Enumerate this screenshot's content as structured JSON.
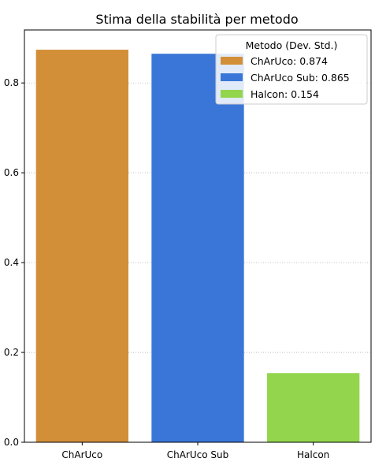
{
  "chart_data": {
    "type": "bar",
    "title": "Stima della stabilità per metodo",
    "xlabel": "",
    "ylabel": "",
    "categories": [
      "ChArUco",
      "ChArUco Sub",
      "Halcon"
    ],
    "values": [
      0.874,
      0.865,
      0.154
    ],
    "colors": [
      "#d28f38",
      "#3a76d8",
      "#93d64e"
    ],
    "ylim": [
      0,
      0.918
    ],
    "yticks": [
      0.0,
      0.2,
      0.4,
      0.6,
      0.8
    ],
    "ytick_labels": [
      "0.0",
      "0.2",
      "0.4",
      "0.6",
      "0.8"
    ],
    "grid": "y-dotted",
    "legend": {
      "title": "Metodo (Dev. Std.)",
      "placement": "top-right",
      "entries": [
        "ChArUco: 0.874",
        "ChArUco Sub: 0.865",
        "Halcon: 0.154"
      ]
    }
  }
}
